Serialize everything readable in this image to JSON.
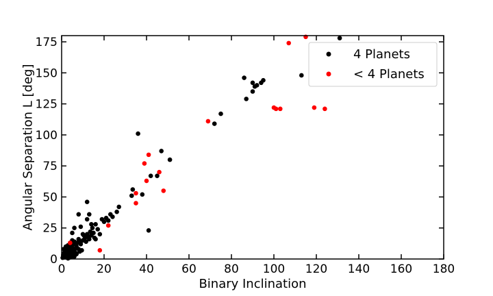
{
  "chart_data": {
    "type": "scatter",
    "title": "",
    "xlabel": "Binary Inclination",
    "ylabel": "Angular Separation L [deg]",
    "xlim": [
      0,
      180
    ],
    "ylim": [
      0,
      180
    ],
    "xticks": [
      0,
      20,
      40,
      60,
      80,
      100,
      120,
      140,
      160,
      180
    ],
    "yticks": [
      0,
      25,
      50,
      75,
      100,
      125,
      150,
      175
    ],
    "grid": false,
    "legend_position": "top-right",
    "series": [
      {
        "name": "4 Planets",
        "color": "#000000",
        "points": [
          [
            0.5,
            1
          ],
          [
            0.8,
            3
          ],
          [
            1,
            2
          ],
          [
            1.2,
            5
          ],
          [
            1.5,
            1.5
          ],
          [
            1.8,
            4
          ],
          [
            2,
            7
          ],
          [
            2.2,
            2
          ],
          [
            2.5,
            5
          ],
          [
            2.8,
            9
          ],
          [
            3,
            3
          ],
          [
            3.2,
            6
          ],
          [
            3.5,
            1
          ],
          [
            3.8,
            8
          ],
          [
            4,
            4
          ],
          [
            4.2,
            11
          ],
          [
            4.5,
            6
          ],
          [
            4.8,
            2
          ],
          [
            5,
            9
          ],
          [
            5.5,
            4
          ],
          [
            5.8,
            12
          ],
          [
            6,
            7
          ],
          [
            6.5,
            5
          ],
          [
            7,
            10
          ],
          [
            7.5,
            13
          ],
          [
            8,
            8
          ],
          [
            8.5,
            6
          ],
          [
            9,
            12
          ],
          [
            9.5,
            7
          ],
          [
            1,
            8
          ],
          [
            2,
            10
          ],
          [
            3,
            11
          ],
          [
            4,
            13
          ],
          [
            5,
            15
          ],
          [
            6,
            14
          ],
          [
            7,
            9
          ],
          [
            8,
            16
          ],
          [
            9,
            14
          ],
          [
            10,
            15
          ],
          [
            10.5,
            19
          ],
          [
            11,
            17
          ],
          [
            11.5,
            14
          ],
          [
            12,
            20
          ],
          [
            12.5,
            18
          ],
          [
            13,
            16
          ],
          [
            13.5,
            22
          ],
          [
            14,
            19
          ],
          [
            14.5,
            25
          ],
          [
            15,
            21
          ],
          [
            15.5,
            17
          ],
          [
            16,
            28
          ],
          [
            17,
            24
          ],
          [
            18,
            20
          ],
          [
            19,
            32
          ],
          [
            20,
            30
          ],
          [
            21,
            33
          ],
          [
            22,
            31
          ],
          [
            23,
            36
          ],
          [
            24,
            34
          ],
          [
            26,
            38
          ],
          [
            27,
            42
          ],
          [
            6,
            25
          ],
          [
            8,
            36
          ],
          [
            9,
            26
          ],
          [
            10,
            20
          ],
          [
            12,
            32
          ],
          [
            13,
            36
          ],
          [
            14,
            28
          ],
          [
            16,
            16
          ],
          [
            5,
            21
          ],
          [
            12,
            46
          ],
          [
            33,
            51
          ],
          [
            33.5,
            56
          ],
          [
            36,
            101
          ],
          [
            38,
            52
          ],
          [
            41,
            23
          ],
          [
            42,
            67
          ],
          [
            45,
            67
          ],
          [
            47,
            87
          ],
          [
            51,
            80
          ],
          [
            72,
            109
          ],
          [
            75,
            117
          ],
          [
            86,
            146
          ],
          [
            87,
            129
          ],
          [
            90,
            135
          ],
          [
            90,
            142
          ],
          [
            91,
            139
          ],
          [
            92,
            140
          ],
          [
            94,
            142
          ],
          [
            95,
            144
          ],
          [
            113,
            148
          ],
          [
            131,
            178
          ],
          [
            3,
            0.5
          ],
          [
            6,
            2
          ],
          [
            7,
            4
          ]
        ]
      },
      {
        "name": "< 4 Planets",
        "color": "#ff0000",
        "points": [
          [
            4,
            13
          ],
          [
            18,
            7
          ],
          [
            22,
            27
          ],
          [
            35,
            45
          ],
          [
            35,
            53
          ],
          [
            39,
            77
          ],
          [
            40,
            63
          ],
          [
            41,
            84
          ],
          [
            46,
            70
          ],
          [
            48,
            55
          ],
          [
            69,
            111
          ],
          [
            100,
            122
          ],
          [
            101,
            121
          ],
          [
            103,
            121
          ],
          [
            107,
            174
          ],
          [
            115,
            179
          ],
          [
            119,
            122
          ],
          [
            124,
            121
          ]
        ]
      }
    ]
  }
}
